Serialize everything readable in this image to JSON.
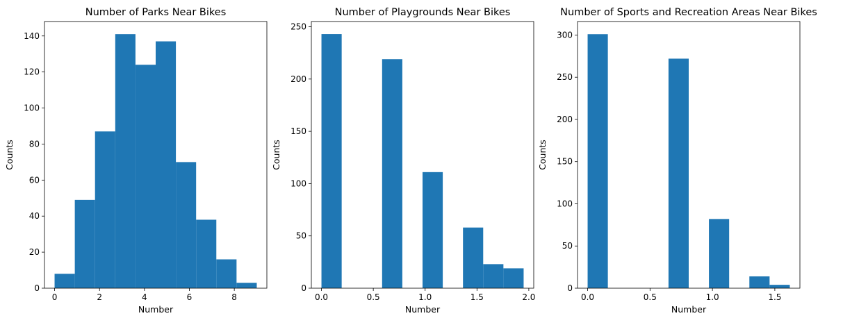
{
  "chart_data": [
    {
      "type": "bar",
      "title": "Number of Parks Near Bikes",
      "xlabel": "Number",
      "ylabel": "Counts",
      "xlim": [
        -0.45,
        9.45
      ],
      "ylim": [
        0,
        148
      ],
      "xticks": [
        0,
        2,
        4,
        6,
        8
      ],
      "xtick_labels": [
        "0",
        "2",
        "4",
        "6",
        "8"
      ],
      "yticks": [
        0,
        20,
        40,
        60,
        80,
        100,
        120,
        140
      ],
      "ytick_labels": [
        "0",
        "20",
        "40",
        "60",
        "80",
        "100",
        "120",
        "140"
      ],
      "bin_edges": [
        0,
        0.9,
        1.8,
        2.7,
        3.6,
        4.5,
        5.4,
        6.3,
        7.2,
        8.1,
        9.0
      ],
      "values": [
        8,
        49,
        87,
        141,
        124,
        137,
        70,
        38,
        16,
        3
      ],
      "color": "#1f77b4",
      "grid": false
    },
    {
      "type": "bar",
      "title": "Number of Playgrounds Near Bikes",
      "xlabel": "Number",
      "ylabel": "Counts",
      "xlim": [
        -0.0975,
        2.0475
      ],
      "ylim": [
        0,
        255
      ],
      "xticks": [
        0,
        0.5,
        1.0,
        1.5,
        2.0
      ],
      "xtick_labels": [
        "0.0",
        "0.5",
        "1.0",
        "1.5",
        "2.0"
      ],
      "yticks": [
        0,
        50,
        100,
        150,
        200,
        250
      ],
      "ytick_labels": [
        "0",
        "50",
        "100",
        "150",
        "200",
        "250"
      ],
      "bin_edges": [
        0,
        0.195,
        0.39,
        0.585,
        0.78,
        0.975,
        1.17,
        1.365,
        1.56,
        1.755,
        1.95
      ],
      "values": [
        243,
        0,
        0,
        219,
        0,
        111,
        0,
        58,
        23,
        19
      ],
      "color": "#1f77b4",
      "grid": false
    },
    {
      "type": "bar",
      "title": "Number of Sports and Recreation Areas Near Bikes",
      "xlabel": "Number",
      "ylabel": "Counts",
      "xlim": [
        -0.081,
        1.701
      ],
      "ylim": [
        0,
        316
      ],
      "xticks": [
        0,
        0.5,
        1.0,
        1.5
      ],
      "xtick_labels": [
        "0.0",
        "0.5",
        "1.0",
        "1.5"
      ],
      "yticks": [
        0,
        50,
        100,
        150,
        200,
        250,
        300
      ],
      "ytick_labels": [
        "0",
        "50",
        "100",
        "150",
        "200",
        "250",
        "300"
      ],
      "bin_edges": [
        0,
        0.162,
        0.324,
        0.486,
        0.648,
        0.81,
        0.972,
        1.134,
        1.296,
        1.458,
        1.62
      ],
      "values": [
        301,
        0,
        0,
        0,
        272,
        0,
        82,
        0,
        14,
        4
      ],
      "color": "#1f77b4",
      "grid": false
    }
  ]
}
